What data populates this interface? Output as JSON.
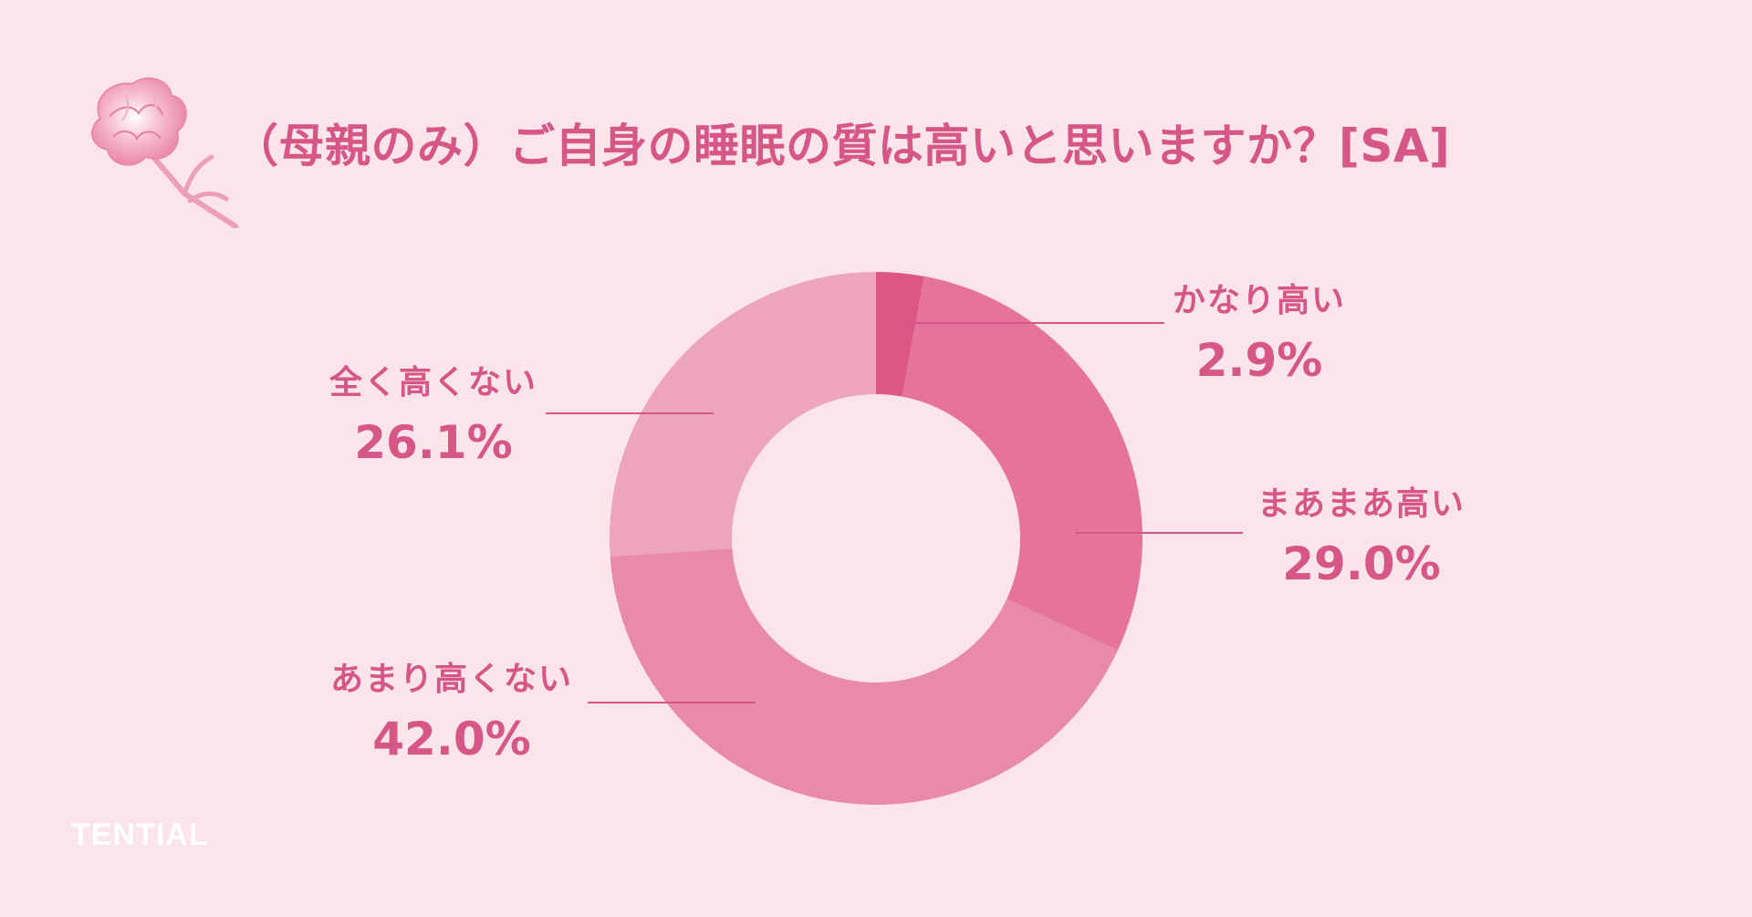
{
  "title": "（母親のみ）ご自身の睡眠の質は高いと思いますか？[SA]",
  "brand": "TENTIAL",
  "colors": {
    "background": "#fbe4ea",
    "text": "#d65685",
    "line": "#d65685",
    "slice_1": "#dd5786",
    "slice_2": "#e5739b",
    "slice_3": "#e98aaa",
    "slice_4": "#eda4bd"
  },
  "chart_data": {
    "type": "pie",
    "donut": true,
    "title": "（母親のみ）ご自身の睡眠の質は高いと思いますか？[SA]",
    "categories": [
      "かなり高い",
      "まあまあ高い",
      "あまり高くない",
      "全く高くない"
    ],
    "values": [
      2.9,
      29.0,
      42.0,
      26.1
    ],
    "unit": "%",
    "labels": [
      "2.9%",
      "29.0%",
      "42.0%",
      "26.1%"
    ],
    "colors": [
      "#dd5786",
      "#e5739b",
      "#e98aaa",
      "#eda4bd"
    ],
    "start_angle": "top",
    "direction": "clockwise"
  },
  "icons": {
    "decoration": "carnation-icon"
  }
}
